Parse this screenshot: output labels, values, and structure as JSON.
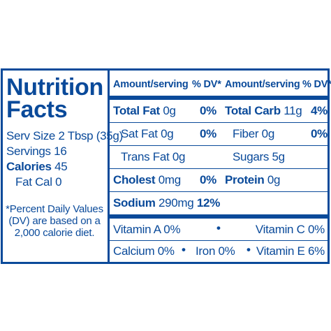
{
  "title": {
    "line1": "Nutrition",
    "line2": "Facts"
  },
  "serving_size": "Serv Size 2 Tbsp (35g)",
  "servings": "Servings 16",
  "calories": {
    "label": "Calories",
    "value": "45"
  },
  "fat_cal": "Fat Cal 0",
  "footnote": "*Percent Daily Values (DV) are based on a 2,000 calorie diet.",
  "header": {
    "amount_1": "Amount/serving",
    "dv_1": "% DV*",
    "amount_2": "Amount/serving",
    "dv_2": "% DV*"
  },
  "nutrients": {
    "total_fat": {
      "label": "Total Fat",
      "amount": "0g",
      "dv": "0%"
    },
    "total_carb": {
      "label": "Total Carb",
      "amount": "11g",
      "dv": "4%"
    },
    "sat_fat": {
      "label": "Sat Fat",
      "amount": "0g",
      "dv": "0%"
    },
    "fiber": {
      "label": "Fiber",
      "amount": "0g",
      "dv": "0%"
    },
    "trans_fat": {
      "label": "Trans Fat",
      "amount": "0g"
    },
    "sugars": {
      "label": "Sugars",
      "amount": "5g"
    },
    "cholest": {
      "label": "Cholest",
      "amount": "0mg",
      "dv": "0%"
    },
    "protein": {
      "label": "Protein",
      "amount": "0g"
    },
    "sodium": {
      "label": "Sodium",
      "amount": "290mg",
      "dv": "12%"
    }
  },
  "vitamins": {
    "vitamin_a": "Vitamin A 0%",
    "vitamin_c": "Vitamin C 0%",
    "calcium": "Calcium 0%",
    "iron": "Iron 0%",
    "vitamin_e": "Vitamin E 6%"
  },
  "bullet": "•",
  "colors": {
    "ink": "#0a4a9a",
    "background": "#ffffff"
  }
}
